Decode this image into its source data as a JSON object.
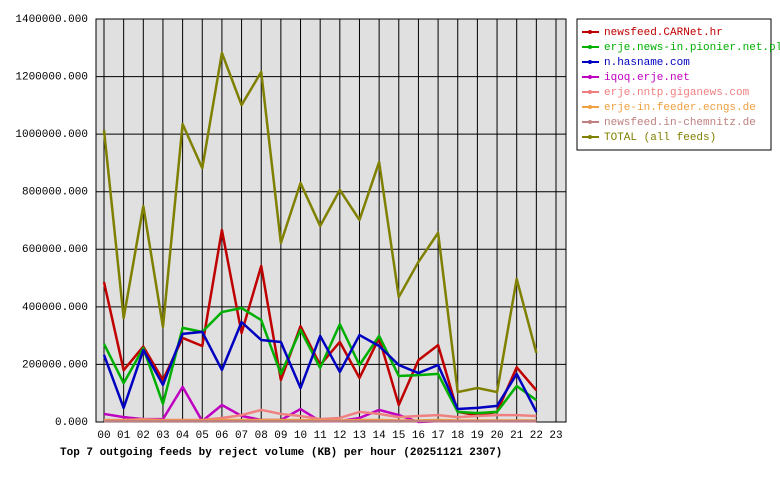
{
  "chart_data": {
    "type": "line",
    "title": "Top 7 outgoing feeds by reject volume (KB) per hour (20251121 2307)",
    "categories": [
      "00",
      "01",
      "02",
      "03",
      "04",
      "05",
      "06",
      "07",
      "08",
      "09",
      "10",
      "11",
      "12",
      "13",
      "14",
      "15",
      "16",
      "17",
      "18",
      "19",
      "20",
      "21",
      "22",
      "23"
    ],
    "ylim": [
      0,
      1400000
    ],
    "yticks": [
      {
        "value": 0,
        "label": "0.000"
      },
      {
        "value": 200000,
        "label": "200000.000"
      },
      {
        "value": 400000,
        "label": "400000.000"
      },
      {
        "value": 600000,
        "label": "600000.000"
      },
      {
        "value": 800000,
        "label": "800000.000"
      },
      {
        "value": 1000000,
        "label": "1000000.000"
      },
      {
        "value": 1200000,
        "label": "1200000.000"
      },
      {
        "value": 1400000,
        "label": "1400000.000"
      }
    ],
    "grid": true,
    "legend": "right",
    "series": [
      {
        "name": "newsfeed.CARNet.hr",
        "color": "#c00000",
        "values": [
          486000,
          180000,
          262000,
          146000,
          292000,
          264000,
          667000,
          309000,
          542000,
          146000,
          333000,
          198000,
          278000,
          153000,
          292000,
          59000,
          215000,
          267000,
          35000,
          24000,
          35000,
          190000,
          110000,
          null
        ]
      },
      {
        "name": "erje.news-in.pionier.net.pl",
        "color": "#00b000",
        "values": [
          271000,
          135000,
          257000,
          63000,
          327000,
          313000,
          382000,
          396000,
          354000,
          167000,
          320000,
          188000,
          340000,
          198000,
          299000,
          160000,
          163000,
          167000,
          35000,
          31000,
          35000,
          125000,
          76000,
          null
        ]
      },
      {
        "name": "n.hasname.com",
        "color": "#0000c0",
        "values": [
          233000,
          49000,
          250000,
          129000,
          306000,
          313000,
          181000,
          347000,
          285000,
          278000,
          118000,
          299000,
          174000,
          302000,
          264000,
          198000,
          170000,
          198000,
          45000,
          49000,
          56000,
          167000,
          35000,
          null
        ]
      },
      {
        "name": "iqoq.erje.net",
        "color": "#c000c0",
        "values": [
          28000,
          17000,
          10000,
          10000,
          122000,
          3000,
          59000,
          21000,
          7000,
          7000,
          45000,
          3000,
          3000,
          14000,
          42000,
          24000,
          0,
          3000,
          3000,
          3000,
          3000,
          3000,
          3000,
          null
        ]
      },
      {
        "name": "erje.nntp.giganews.com",
        "color": "#f08080",
        "values": [
          7000,
          7000,
          10000,
          7000,
          7000,
          7000,
          14000,
          24000,
          42000,
          28000,
          21000,
          10000,
          14000,
          35000,
          28000,
          17000,
          21000,
          24000,
          17000,
          21000,
          24000,
          24000,
          21000,
          null
        ]
      },
      {
        "name": "erje-in.feeder.ecngs.de",
        "color": "#f0a040",
        "values": [
          5000,
          5000,
          5000,
          5000,
          5000,
          5000,
          7000,
          7000,
          7000,
          7000,
          7000,
          5000,
          5000,
          7000,
          7000,
          5000,
          5000,
          7000,
          5000,
          5000,
          5000,
          5000,
          5000,
          null
        ]
      },
      {
        "name": "newsfeed.in-chemnitz.de",
        "color": "#c08080",
        "values": [
          3000,
          3000,
          3000,
          3000,
          3000,
          3000,
          3000,
          3000,
          3000,
          3000,
          3000,
          3000,
          3000,
          3000,
          3000,
          3000,
          3000,
          3000,
          3000,
          3000,
          3000,
          3000,
          3000,
          null
        ]
      },
      {
        "name": "TOTAL (all feeds)",
        "color": "#808000",
        "values": [
          1014000,
          361000,
          750000,
          330000,
          1035000,
          882000,
          1282000,
          1101000,
          1216000,
          622000,
          830000,
          681000,
          806000,
          702000,
          903000,
          434000,
          556000,
          657000,
          104000,
          118000,
          104000,
          497000,
          240000,
          null
        ]
      }
    ]
  }
}
